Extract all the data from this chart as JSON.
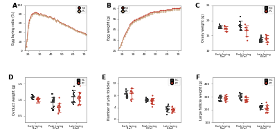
{
  "panel_A": {
    "label": "A",
    "ylabel": "Egg laying ratio (%)",
    "xlim": [
      17,
      72
    ],
    "ylim": [
      0,
      100
    ],
    "yticks": [
      0,
      20,
      40,
      60,
      80,
      100
    ],
    "xticks": [
      20,
      30,
      40,
      50,
      60,
      70
    ],
    "legend": [
      "NC",
      "PC"
    ],
    "nc_color": "#c0392b",
    "pc_color": "#c8a882",
    "weeks": [
      17,
      18,
      19,
      20,
      21,
      22,
      23,
      24,
      25,
      26,
      27,
      28,
      29,
      30,
      31,
      32,
      33,
      34,
      35,
      36,
      37,
      38,
      39,
      40,
      41,
      42,
      43,
      44,
      45,
      46,
      47,
      48,
      49,
      50,
      51,
      52,
      53,
      54,
      55,
      56,
      57,
      58,
      59,
      60,
      61,
      62,
      63,
      64,
      65,
      66,
      67,
      68,
      69,
      70,
      71,
      72
    ],
    "vals_nc": [
      2,
      10,
      25,
      55,
      67,
      74,
      80,
      82,
      83,
      85,
      84,
      83,
      82,
      80,
      82,
      80,
      78,
      79,
      78,
      77,
      76,
      74,
      76,
      75,
      72,
      70,
      72,
      68,
      65,
      68,
      65,
      63,
      62,
      60,
      60,
      58,
      57,
      56,
      55,
      54,
      52,
      51,
      50,
      48,
      47,
      45,
      44,
      43,
      42,
      42,
      41,
      40,
      39,
      38,
      37,
      35
    ],
    "vals_pc": [
      2,
      8,
      22,
      50,
      62,
      72,
      77,
      80,
      81,
      83,
      82,
      81,
      80,
      79,
      81,
      79,
      77,
      78,
      77,
      76,
      75,
      73,
      75,
      74,
      71,
      69,
      71,
      67,
      64,
      67,
      64,
      62,
      61,
      59,
      59,
      57,
      56,
      55,
      54,
      53,
      51,
      50,
      49,
      47,
      46,
      44,
      43,
      42,
      41,
      41,
      40,
      39,
      38,
      37,
      36,
      34
    ]
  },
  "panel_B": {
    "label": "B",
    "ylabel": "Egg weight (g)",
    "xlim": [
      17,
      72
    ],
    "ylim": [
      25,
      68
    ],
    "yticks": [
      25,
      35,
      45,
      55,
      65
    ],
    "xticks": [
      20,
      30,
      40,
      50,
      60,
      70
    ],
    "legend": [
      "NC",
      "PC"
    ],
    "nc_color": "#c0392b",
    "pc_color": "#c8a882",
    "weeks": [
      17,
      18,
      19,
      20,
      21,
      22,
      23,
      24,
      25,
      26,
      27,
      28,
      29,
      30,
      31,
      32,
      33,
      34,
      35,
      36,
      37,
      38,
      39,
      40,
      41,
      42,
      43,
      44,
      45,
      46,
      47,
      48,
      49,
      50,
      51,
      52,
      53,
      54,
      55,
      56,
      57,
      58,
      59,
      60,
      61,
      62,
      63,
      64,
      65,
      66,
      67,
      68,
      69,
      70,
      71,
      72
    ],
    "vals_nc": [
      27,
      28,
      30,
      33,
      36,
      39,
      41,
      43,
      45,
      47,
      50,
      51,
      52,
      53,
      54,
      54,
      55,
      55,
      56,
      56,
      57,
      57,
      58,
      58,
      59,
      59,
      60,
      60,
      61,
      61,
      61,
      62,
      62,
      62,
      62,
      62,
      62,
      63,
      63,
      63,
      63,
      63,
      63,
      64,
      64,
      64,
      64,
      64,
      65,
      65,
      65,
      65,
      65,
      65,
      65,
      66
    ],
    "vals_pc": [
      27,
      28,
      30,
      33,
      36,
      38,
      40,
      42,
      44,
      46,
      49,
      50,
      51,
      52,
      53,
      53,
      54,
      54,
      55,
      55,
      56,
      56,
      57,
      57,
      58,
      58,
      59,
      59,
      60,
      60,
      60,
      61,
      61,
      61,
      61,
      61,
      61,
      62,
      62,
      62,
      62,
      62,
      62,
      63,
      63,
      63,
      63,
      63,
      64,
      64,
      64,
      64,
      64,
      64,
      64,
      65
    ]
  },
  "panel_C": {
    "label": "C",
    "ylabel": "Ovary weight (g)",
    "groups": [
      "Early laying (1w)",
      "Peak Laying (37w)",
      "Late laying (56w)"
    ],
    "ylim": [
      10,
      25
    ],
    "yticks": [
      10,
      15,
      20,
      25
    ],
    "nc_color": "#333333",
    "pc_color": "#c0392b",
    "nc_means": [
      17.5,
      18.5,
      14.0
    ],
    "pc_means": [
      17.8,
      17.2,
      13.0
    ],
    "nc_spread": [
      0.8,
      1.5,
      1.0
    ],
    "pc_spread": [
      0.9,
      2.0,
      1.5
    ],
    "n_dots": 8
  },
  "panel_D": {
    "label": "D",
    "ylabel": "Oviduct weight (g)",
    "groups": [
      "Early laying (1w)",
      "Peak Laying (37w)",
      "Late laying (56w)"
    ],
    "ylim": [
      0.3,
      1.7
    ],
    "yticks": [
      0.5,
      1.0,
      1.5
    ],
    "nc_color": "#333333",
    "pc_color": "#c0392b",
    "nc_means": [
      1.08,
      0.88,
      1.08
    ],
    "pc_means": [
      1.05,
      0.82,
      1.02
    ],
    "nc_spread": [
      0.08,
      0.14,
      0.18
    ],
    "pc_spread": [
      0.1,
      0.16,
      0.22
    ],
    "n_dots": 10
  },
  "panel_E": {
    "label": "E",
    "ylabel": "Number of yolk follicles",
    "groups": [
      "Early laying (1w)",
      "Peak Laying (37w)",
      "Late laying (56w)"
    ],
    "ylim": [
      -1,
      14
    ],
    "yticks": [
      0,
      4,
      8,
      12
    ],
    "nc_color": "#333333",
    "pc_color": "#c0392b",
    "nc_means": [
      9.0,
      6.5,
      3.8
    ],
    "pc_means": [
      8.5,
      6.0,
      3.2
    ],
    "nc_spread": [
      1.2,
      0.7,
      0.7
    ],
    "pc_spread": [
      1.8,
      0.9,
      0.8
    ],
    "n_dots": 10
  },
  "panel_F": {
    "label": "F",
    "ylabel": "Large follicle weight (g)",
    "groups": [
      "Early laying (1w)",
      "Peak Laying (37w)",
      "Late laying (56w)"
    ],
    "ylim": [
      100,
      450
    ],
    "yticks": [
      100,
      200,
      300,
      400
    ],
    "nc_color": "#333333",
    "pc_color": "#c0392b",
    "nc_means": [
      285,
      295,
      215
    ],
    "pc_means": [
      275,
      288,
      195
    ],
    "nc_spread": [
      28,
      32,
      22
    ],
    "pc_spread": [
      32,
      38,
      28
    ],
    "n_dots": 10
  },
  "bg_color": "#ffffff",
  "spine_color": "#888888"
}
